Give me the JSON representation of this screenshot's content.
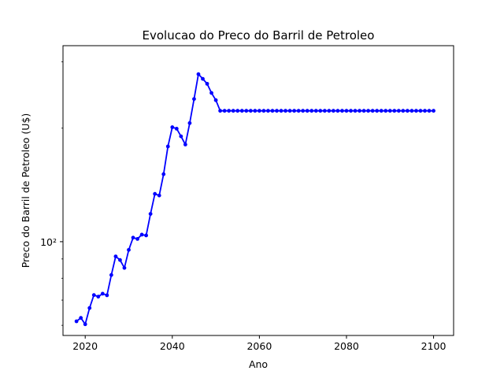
{
  "chart_data": {
    "type": "line",
    "title": "Evolucao do Preco do Barril de Petroleo",
    "xlabel": "Ano",
    "ylabel": "Preco do Barril de Petroleo (U$)",
    "y_scale": "log",
    "xlim": [
      2014.9,
      2104.6
    ],
    "ylim": [
      56.4,
      331
    ],
    "x_ticks": [
      2020,
      2040,
      2060,
      2080,
      2100
    ],
    "x_tick_labels": [
      "2020",
      "2040",
      "2060",
      "2080",
      "2100"
    ],
    "y_major_ticks": [
      100
    ],
    "y_major_tick_labels": [
      "10²"
    ],
    "y_minor_ticks": [
      60,
      70,
      80,
      90,
      200,
      300
    ],
    "grid": false,
    "legend": "none",
    "series": [
      {
        "color": "#0000ff",
        "marker": "circle",
        "x": [
          2018,
          2019,
          2020,
          2021,
          2022,
          2023,
          2024,
          2025,
          2026,
          2027,
          2028,
          2029,
          2030,
          2031,
          2032,
          2033,
          2034,
          2035,
          2036,
          2037,
          2038,
          2039,
          2040,
          2041,
          2042,
          2043,
          2044,
          2045,
          2046,
          2047,
          2048,
          2049,
          2050,
          2051,
          2052,
          2053,
          2054,
          2055,
          2056,
          2057,
          2058,
          2059,
          2060,
          2061,
          2062,
          2063,
          2064,
          2065,
          2066,
          2067,
          2068,
          2069,
          2070,
          2071,
          2072,
          2073,
          2074,
          2075,
          2076,
          2077,
          2078,
          2079,
          2080,
          2081,
          2082,
          2083,
          2084,
          2085,
          2086,
          2087,
          2088,
          2089,
          2090,
          2091,
          2092,
          2093,
          2094,
          2095,
          2096,
          2097,
          2098,
          2099,
          2100
        ],
        "y": [
          61.5,
          62.8,
          60.4,
          66.7,
          72.2,
          71.5,
          72.8,
          72.1,
          81.6,
          91.4,
          89.4,
          85.2,
          95.1,
          102.5,
          101.7,
          104.4,
          103.9,
          118.5,
          133.9,
          132.6,
          151.0,
          178.9,
          201.2,
          199.4,
          190.3,
          181.0,
          206.3,
          239.0,
          278.2,
          270.3,
          262.3,
          248.0,
          237.3,
          222.4,
          222.4,
          222.4,
          222.4,
          222.4,
          222.4,
          222.4,
          222.4,
          222.4,
          222.4,
          222.4,
          222.4,
          222.4,
          222.4,
          222.4,
          222.4,
          222.4,
          222.4,
          222.4,
          222.4,
          222.4,
          222.4,
          222.4,
          222.4,
          222.4,
          222.4,
          222.4,
          222.4,
          222.4,
          222.4,
          222.4,
          222.4,
          222.4,
          222.4,
          222.4,
          222.4,
          222.4,
          222.4,
          222.4,
          222.4,
          222.4,
          222.4,
          222.4,
          222.4,
          222.4,
          222.4,
          222.4,
          222.4,
          222.4,
          222.4
        ]
      }
    ]
  }
}
